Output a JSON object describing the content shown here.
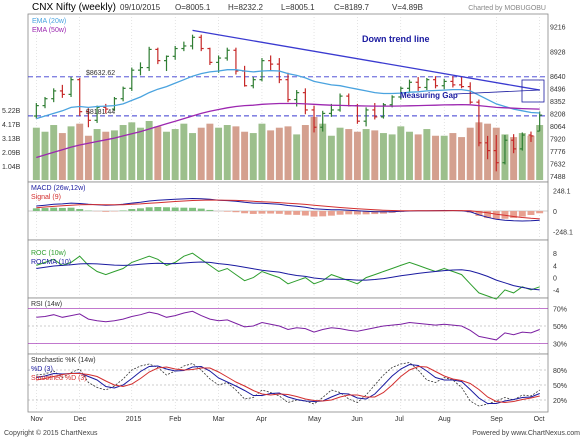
{
  "header": {
    "symbol": "CNX Nifty (weekly)",
    "date": "09/10/2015",
    "open": "O=8005.1",
    "high": "H=8232.2",
    "low": "L=8005.1",
    "close": "C=8189.7",
    "volume": "V=4.89B",
    "credit": "Charted by MOBUGOBU"
  },
  "footer": {
    "copyright": "Copyright © 2015 ChartNexus",
    "powered": "Powered by www.ChartNexus.com"
  },
  "colors": {
    "up": "#2e7d32",
    "down": "#c62828",
    "ema20": "#4aa3df",
    "ema50": "#9c27b0",
    "trend": "#3a3ad0",
    "vol_up": "#9cbf8c",
    "vol_down": "#d4a08f"
  },
  "chart_data": [
    {
      "type": "candlestick",
      "panel": "price",
      "x_ticks": [
        "Nov",
        "Dec",
        "2015",
        "Feb",
        "Mar",
        "Apr",
        "May",
        "Jun",
        "Jul",
        "Aug",
        "Sep",
        "Oct"
      ],
      "y_ticks_right": [
        9216,
        8928,
        8640,
        8496,
        8352,
        8208,
        8064,
        7920,
        7776,
        7632,
        7488
      ],
      "ylim": [
        7440,
        9290
      ],
      "legend": [
        "EMA (20w)",
        "EMA (50w)"
      ],
      "reference_lines": [
        {
          "label": "$8632.62",
          "value": 8632.62
        },
        {
          "label": "$8181.44",
          "value": 8181.44
        }
      ],
      "annotations": [
        "Down trend line",
        "Measuring Gap"
      ],
      "candles": [
        [
          8180,
          8330,
          8150,
          8300
        ],
        [
          8300,
          8400,
          8270,
          8380
        ],
        [
          8380,
          8500,
          8340,
          8470
        ],
        [
          8470,
          8540,
          8390,
          8430
        ],
        [
          8430,
          8630,
          8400,
          8600
        ],
        [
          8600,
          8620,
          8180,
          8230
        ],
        [
          8230,
          8270,
          8050,
          8130
        ],
        [
          8130,
          8300,
          8100,
          8280
        ],
        [
          8280,
          8320,
          8210,
          8260
        ],
        [
          8260,
          8400,
          8240,
          8380
        ],
        [
          8380,
          8520,
          8350,
          8500
        ],
        [
          8500,
          8740,
          8470,
          8710
        ],
        [
          8710,
          8800,
          8650,
          8740
        ],
        [
          8740,
          8980,
          8700,
          8950
        ],
        [
          8950,
          8970,
          8780,
          8820
        ],
        [
          8820,
          8880,
          8700,
          8870
        ],
        [
          8870,
          8990,
          8830,
          8960
        ],
        [
          8960,
          9040,
          8930,
          8990
        ],
        [
          8990,
          9120,
          8950,
          9090
        ],
        [
          9090,
          9120,
          8930,
          8960
        ],
        [
          8960,
          8970,
          8770,
          8800
        ],
        [
          8800,
          8880,
          8680,
          8850
        ],
        [
          8850,
          8970,
          8820,
          8940
        ],
        [
          8940,
          8970,
          8660,
          8700
        ],
        [
          8700,
          8760,
          8520,
          8530
        ],
        [
          8530,
          8630,
          8500,
          8600
        ],
        [
          8600,
          8850,
          8580,
          8820
        ],
        [
          8820,
          8880,
          8700,
          8780
        ],
        [
          8780,
          8850,
          8560,
          8600
        ],
        [
          8600,
          8680,
          8340,
          8370
        ],
        [
          8370,
          8480,
          8290,
          8450
        ],
        [
          8450,
          8500,
          8200,
          8250
        ],
        [
          8250,
          8300,
          7990,
          8050
        ],
        [
          8050,
          8240,
          8000,
          8210
        ],
        [
          8210,
          8320,
          8170,
          8250
        ],
        [
          8250,
          8440,
          8230,
          8410
        ],
        [
          8410,
          8440,
          8290,
          8300
        ],
        [
          8300,
          8320,
          8090,
          8120
        ],
        [
          8120,
          8280,
          8060,
          8250
        ],
        [
          8250,
          8330,
          8140,
          8170
        ],
        [
          8170,
          8330,
          8150,
          8310
        ],
        [
          8310,
          8420,
          8280,
          8400
        ],
        [
          8400,
          8520,
          8370,
          8500
        ],
        [
          8500,
          8600,
          8460,
          8570
        ],
        [
          8570,
          8630,
          8470,
          8510
        ],
        [
          8510,
          8620,
          8480,
          8600
        ],
        [
          8600,
          8640,
          8500,
          8530
        ],
        [
          8530,
          8610,
          8490,
          8580
        ],
        [
          8580,
          8640,
          8510,
          8540
        ],
        [
          8540,
          8640,
          8500,
          8520
        ],
        [
          8520,
          8570,
          8320,
          8340
        ],
        [
          8340,
          8370,
          7830,
          7870
        ],
        [
          7870,
          7950,
          7680,
          7780
        ],
        [
          7780,
          7960,
          7540,
          7640
        ],
        [
          7640,
          7960,
          7620,
          7900
        ],
        [
          7900,
          7970,
          7750,
          7800
        ],
        [
          7800,
          7990,
          7780,
          7960
        ],
        [
          7960,
          8000,
          7880,
          7950
        ],
        [
          8005,
          8232,
          8005,
          8190
        ]
      ],
      "ema20": [
        8150,
        8180,
        8210,
        8240,
        8280,
        8290,
        8280,
        8290,
        8295,
        8300,
        8320,
        8360,
        8400,
        8450,
        8490,
        8520,
        8560,
        8600,
        8640,
        8670,
        8690,
        8700,
        8715,
        8715,
        8700,
        8690,
        8700,
        8705,
        8700,
        8670,
        8650,
        8620,
        8580,
        8560,
        8540,
        8530,
        8510,
        8490,
        8470,
        8450,
        8440,
        8440,
        8445,
        8455,
        8460,
        8470,
        8475,
        8480,
        8485,
        8485,
        8470,
        8420,
        8370,
        8320,
        8290,
        8260,
        8240,
        8220,
        8215
      ],
      "ema50": [
        7700,
        7730,
        7760,
        7790,
        7820,
        7845,
        7865,
        7885,
        7905,
        7925,
        7950,
        7975,
        8000,
        8030,
        8060,
        8090,
        8120,
        8150,
        8180,
        8210,
        8235,
        8255,
        8275,
        8290,
        8300,
        8305,
        8315,
        8320,
        8325,
        8325,
        8325,
        8320,
        8315,
        8310,
        8305,
        8302,
        8300,
        8298,
        8296,
        8295,
        8294,
        8294,
        8296,
        8298,
        8300,
        8302,
        8305,
        8308,
        8310,
        8312,
        8310,
        8300,
        8290,
        8280,
        8275,
        8270,
        8265,
        8262,
        8260
      ],
      "volume_ticks": [
        "5.22B",
        "4.17B",
        "3.13B",
        "2.09B",
        "1.04B"
      ],
      "volume_max": 5.22,
      "volume": [
        3.9,
        3.6,
        4.1,
        3.5,
        4.0,
        4.2,
        3.3,
        3.8,
        3.6,
        3.7,
        4.1,
        4.3,
        3.9,
        4.4,
        4.0,
        3.6,
        3.8,
        4.2,
        3.5,
        3.9,
        4.2,
        3.9,
        4.1,
        4.0,
        3.6,
        3.5,
        4.2,
        3.7,
        3.9,
        4.0,
        3.4,
        4.1,
        4.7,
        4.2,
        3.3,
        3.9,
        3.8,
        3.6,
        3.8,
        3.7,
        3.5,
        3.4,
        4.0,
        3.6,
        3.4,
        3.8,
        3.3,
        3.3,
        3.5,
        3.2,
        3.9,
        4.3,
        4.2,
        3.9,
        3.4,
        3.2,
        3.5,
        3.3,
        4.1
      ]
    },
    {
      "type": "line",
      "panel": "macd",
      "title": "MACD (26w,12w)",
      "series_names": [
        "MACD (26w,12w)",
        "Signal (9)"
      ],
      "y_ticks_right": [
        "248.1",
        "0",
        "-248.1"
      ],
      "ylim": [
        -300,
        300
      ],
      "macd": [
        60,
        70,
        80,
        85,
        95,
        90,
        80,
        75,
        70,
        72,
        80,
        95,
        105,
        120,
        130,
        135,
        140,
        145,
        150,
        148,
        140,
        130,
        125,
        118,
        105,
        95,
        92,
        88,
        80,
        66,
        58,
        45,
        28,
        20,
        15,
        14,
        10,
        2,
        -4,
        -8,
        -10,
        -8,
        -4,
        0,
        2,
        4,
        5,
        6,
        6,
        4,
        -10,
        -45,
        -75,
        -100,
        -110,
        -118,
        -120,
        -118,
        -112
      ],
      "signal": [
        40,
        48,
        55,
        62,
        70,
        75,
        77,
        77,
        76,
        75,
        76,
        80,
        85,
        92,
        100,
        107,
        114,
        120,
        126,
        130,
        132,
        131,
        130,
        127,
        122,
        117,
        112,
        107,
        101,
        94,
        87,
        79,
        70,
        60,
        50,
        42,
        35,
        28,
        21,
        15,
        10,
        6,
        3,
        2,
        2,
        2,
        3,
        4,
        5,
        5,
        2,
        -8,
        -22,
        -38,
        -52,
        -66,
        -78,
        -88,
        -95
      ],
      "histogram": [
        20,
        22,
        25,
        23,
        25,
        15,
        3,
        -2,
        -6,
        -3,
        4,
        15,
        20,
        28,
        30,
        28,
        26,
        25,
        24,
        18,
        8,
        -1,
        -5,
        -9,
        -17,
        -22,
        -20,
        -19,
        -21,
        -28,
        -29,
        -34,
        -42,
        -40,
        -35,
        -28,
        -25,
        -26,
        -25,
        -23,
        -20,
        -14,
        -7,
        -2,
        0,
        2,
        2,
        2,
        1,
        -1,
        -12,
        -37,
        -53,
        -62,
        -58,
        -52,
        -42,
        -30,
        -17
      ]
    },
    {
      "type": "line",
      "panel": "roc",
      "series_names": [
        "ROC (10w)",
        "ROCMA (10)"
      ],
      "y_ticks_right": [
        "8",
        "4",
        "0",
        "-4"
      ],
      "ylim": [
        -6,
        11
      ],
      "roc": [
        4,
        5,
        6,
        4,
        5,
        7,
        4,
        2,
        1,
        2,
        3,
        5,
        6,
        7,
        6,
        4,
        5,
        7,
        8,
        6,
        4,
        2,
        3,
        1,
        -1,
        0,
        2,
        1,
        0,
        -2,
        -1,
        0,
        -2,
        -1,
        1,
        0,
        -1,
        -2,
        0,
        1,
        2,
        3,
        4,
        5,
        4,
        3,
        2,
        3,
        2,
        1,
        -2,
        -5,
        -6,
        -7,
        -4,
        -5,
        -3,
        -4,
        -3
      ],
      "rocma": [
        3,
        3.4,
        3.8,
        4,
        4.2,
        4.5,
        4.6,
        4.5,
        4.3,
        4.1,
        4,
        4.1,
        4.4,
        4.6,
        4.7,
        4.6,
        4.6,
        4.8,
        5,
        5.1,
        5,
        4.6,
        4.3,
        3.9,
        3.4,
        2.9,
        2.4,
        2.1,
        1.8,
        1.2,
        0.7,
        0.4,
        -0.1,
        -0.4,
        -0.5,
        -0.5,
        -0.6,
        -0.8,
        -0.8,
        -0.6,
        -0.3,
        0.1,
        0.6,
        1,
        1.4,
        1.7,
        2,
        2.3,
        2.5,
        2.6,
        2.2,
        1.4,
        0.4,
        -0.8,
        -1.7,
        -2.6,
        -3.2,
        -3.7,
        -4
      ]
    },
    {
      "type": "line",
      "panel": "rsi",
      "title": "RSI (14w)",
      "y_ticks_right": [
        "70%",
        "50%",
        "30%"
      ],
      "ylim": [
        20,
        80
      ],
      "rsi": [
        60,
        61,
        63,
        60,
        62,
        64,
        58,
        56,
        55,
        56,
        58,
        61,
        63,
        66,
        64,
        60,
        62,
        65,
        67,
        62,
        58,
        56,
        57,
        53,
        49,
        50,
        54,
        52,
        50,
        46,
        48,
        47,
        43,
        46,
        48,
        47,
        45,
        44,
        46,
        48,
        50,
        51,
        52,
        54,
        53,
        52,
        51,
        52,
        51,
        50,
        45,
        38,
        36,
        34,
        42,
        40,
        43,
        42,
        46
      ]
    },
    {
      "type": "line",
      "panel": "stochastic",
      "series_names": [
        "Stochastic %K (14w)",
        "%D (3)",
        "Smoothed %D (3)"
      ],
      "y_ticks_right": [
        "80%",
        "50%",
        "20%"
      ],
      "ylim": [
        0,
        100
      ],
      "k": [
        70,
        72,
        78,
        65,
        75,
        82,
        55,
        45,
        40,
        48,
        62,
        80,
        88,
        92,
        85,
        70,
        78,
        88,
        93,
        80,
        62,
        50,
        55,
        40,
        22,
        25,
        40,
        35,
        28,
        15,
        20,
        18,
        12,
        25,
        40,
        35,
        22,
        15,
        30,
        50,
        70,
        85,
        92,
        95,
        80,
        60,
        55,
        65,
        60,
        45,
        18,
        8,
        12,
        18,
        25,
        20,
        30,
        28,
        40
      ],
      "d": [
        65,
        68,
        73,
        72,
        73,
        74,
        67,
        60,
        47,
        44,
        50,
        63,
        77,
        87,
        88,
        82,
        78,
        79,
        86,
        87,
        78,
        64,
        56,
        48,
        39,
        29,
        29,
        33,
        34,
        26,
        21,
        18,
        17,
        18,
        26,
        33,
        32,
        24,
        22,
        32,
        50,
        68,
        82,
        91,
        89,
        78,
        65,
        60,
        60,
        57,
        41,
        24,
        13,
        13,
        18,
        21,
        25,
        26,
        33
      ],
      "sd": [
        60,
        63,
        67,
        71,
        73,
        73,
        71,
        67,
        58,
        50,
        47,
        52,
        63,
        76,
        84,
        86,
        82,
        80,
        81,
        84,
        84,
        76,
        66,
        56,
        48,
        39,
        32,
        30,
        32,
        31,
        27,
        22,
        19,
        18,
        20,
        26,
        30,
        30,
        26,
        26,
        35,
        50,
        67,
        80,
        87,
        86,
        77,
        68,
        62,
        59,
        53,
        41,
        26,
        17,
        15,
        17,
        21,
        24,
        28
      ]
    }
  ]
}
